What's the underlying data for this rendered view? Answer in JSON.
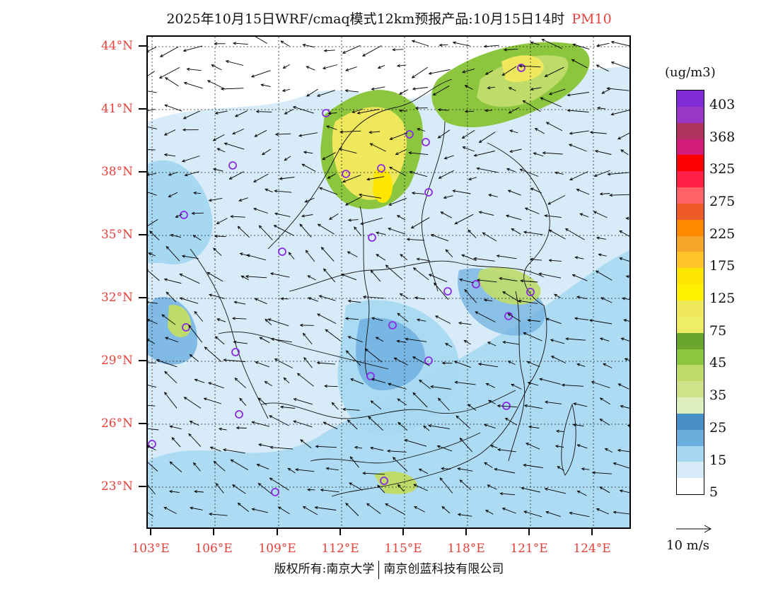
{
  "title": {
    "main": "2025年10月15日WRF/cmaq模式12km预报产品:10月15日14时",
    "pollutant": "PM10",
    "pollutant_color": "#e8413c"
  },
  "axes": {
    "lat_labels": [
      "44°N",
      "41°N",
      "38°N",
      "35°N",
      "32°N",
      "29°N",
      "26°N",
      "23°N"
    ],
    "lon_labels": [
      "103°E",
      "106°E",
      "109°E",
      "112°E",
      "115°E",
      "118°E",
      "121°E",
      "124°E"
    ],
    "label_color": "#e8413c"
  },
  "legend": {
    "unit": "(ug/m3)",
    "labels": [
      "403",
      "368",
      "325",
      "275",
      "225",
      "175",
      "125",
      "75",
      "45",
      "35",
      "25",
      "15",
      "5"
    ],
    "colors": [
      "#7f2bd6",
      "#9a37c9",
      "#b0325e",
      "#d11b7b",
      "#ff0000",
      "#ff1f47",
      "#ff6166",
      "#ee5a2a",
      "#ff8a00",
      "#f5a52a",
      "#ffc32b",
      "#ffe600",
      "#fff100",
      "#f0e85c",
      "#eeee66",
      "#6aa52e",
      "#8cc63f",
      "#bfdc6a",
      "#cfe28a",
      "#dfeec0",
      "#4a90c8",
      "#6baede",
      "#a6d8f2",
      "#d7ecf8",
      "#ffffff"
    ]
  },
  "wind_reference": {
    "label": "10 m/s"
  },
  "markers": {
    "color": "#8a2be2"
  },
  "footer": {
    "left": "版权所有:南京大学",
    "right": "南京创蓝科技有限公司"
  }
}
